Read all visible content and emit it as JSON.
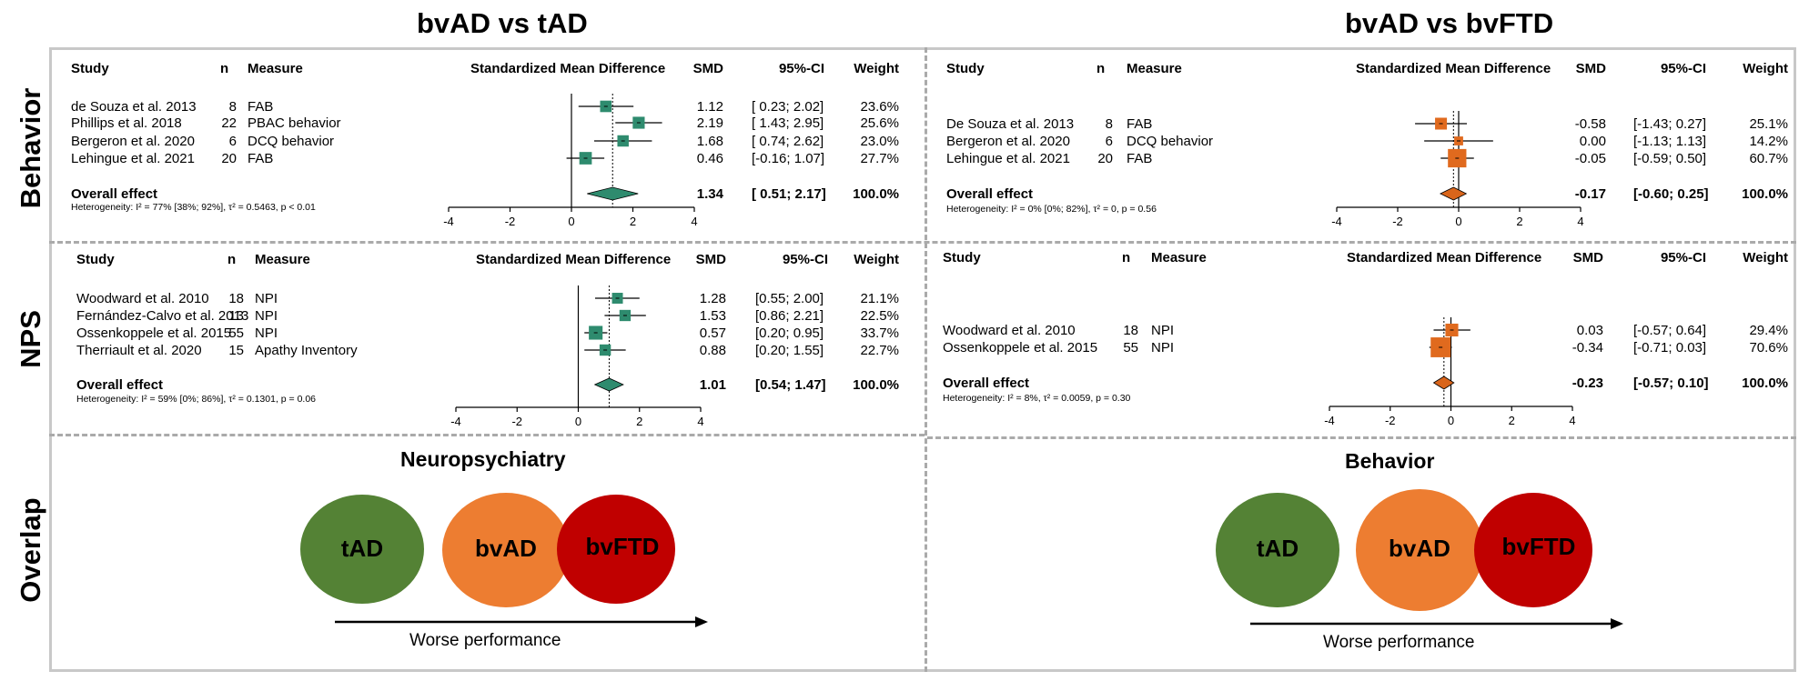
{
  "titles": {
    "left": "bvAD vs tAD",
    "right": "bvAD vs bvFTD"
  },
  "row_labels": {
    "behavior": "Behavior",
    "nps": "NPS",
    "overlap": "Overlap"
  },
  "colors": {
    "green": "#2e8b6e",
    "orange": "#e06a1e",
    "diamond_green": "#2e8b6e",
    "diamond_orange": "#d9651b",
    "circle_tad": "#548235",
    "circle_bvad": "#ed7d31",
    "circle_bvftd": "#c00000"
  },
  "headers": {
    "study": "Study",
    "n": "n",
    "measure": "Measure",
    "smd_plot": "Standardized Mean Difference",
    "smd": "SMD",
    "ci": "95%-CI",
    "weight": "Weight"
  },
  "chart_data": [
    {
      "type": "forest",
      "panel": "Behavior: bvAD vs tAD",
      "xlim": [
        -4,
        4
      ],
      "ticks": [
        "-4",
        "-2",
        "0",
        "2",
        "4"
      ],
      "reference_line": 1.34,
      "studies": [
        {
          "study": "de Souza et al. 2013",
          "n": "8",
          "measure": "FAB",
          "smd": 1.12,
          "lo": 0.23,
          "hi": 2.02,
          "smd_text": "1.12",
          "ci_text": "[ 0.23; 2.02]",
          "weight": "23.6%"
        },
        {
          "study": "Phillips et al. 2018",
          "n": "22",
          "measure": "PBAC behavior",
          "smd": 2.19,
          "lo": 1.43,
          "hi": 2.95,
          "smd_text": "2.19",
          "ci_text": "[ 1.43; 2.95]",
          "weight": "25.6%"
        },
        {
          "study": "Bergeron et al. 2020",
          "n": "6",
          "measure": "DCQ behavior",
          "smd": 1.68,
          "lo": 0.74,
          "hi": 2.62,
          "smd_text": "1.68",
          "ci_text": "[ 0.74; 2.62]",
          "weight": "23.0%"
        },
        {
          "study": "Lehingue et al. 2021",
          "n": "20",
          "measure": "FAB",
          "smd": 0.46,
          "lo": -0.16,
          "hi": 1.07,
          "smd_text": "0.46",
          "ci_text": "[-0.16; 1.07]",
          "weight": "27.7%"
        }
      ],
      "overall": {
        "label": "Overall effect",
        "smd": 1.34,
        "lo": 0.51,
        "hi": 2.17,
        "smd_text": "1.34",
        "ci_text": "[ 0.51; 2.17]",
        "weight": "100.0%"
      },
      "heterogeneity": "Heterogeneity: I² = 77% [38%; 92%], τ² = 0.5463, p < 0.01"
    },
    {
      "type": "forest",
      "panel": "Behavior: bvAD vs bvFTD",
      "xlim": [
        -4,
        4
      ],
      "ticks": [
        "-4",
        "-2",
        "0",
        "2",
        "4"
      ],
      "reference_line": -0.17,
      "studies": [
        {
          "study": "De Souza et al. 2013",
          "n": "8",
          "measure": "FAB",
          "smd": -0.58,
          "lo": -1.43,
          "hi": 0.27,
          "smd_text": "-0.58",
          "ci_text": "[-1.43; 0.27]",
          "weight": "25.1%"
        },
        {
          "study": "Bergeron et al. 2020",
          "n": "6",
          "measure": "DCQ behavior",
          "smd": 0.0,
          "lo": -1.13,
          "hi": 1.13,
          "smd_text": "0.00",
          "ci_text": "[-1.13; 1.13]",
          "weight": "14.2%"
        },
        {
          "study": "Lehingue et al. 2021",
          "n": "20",
          "measure": "FAB",
          "smd": -0.05,
          "lo": -0.59,
          "hi": 0.5,
          "smd_text": "-0.05",
          "ci_text": "[-0.59; 0.50]",
          "weight": "60.7%"
        }
      ],
      "overall": {
        "label": "Overall effect",
        "smd": -0.17,
        "lo": -0.6,
        "hi": 0.25,
        "smd_text": "-0.17",
        "ci_text": "[-0.60; 0.25]",
        "weight": "100.0%"
      },
      "heterogeneity": "Heterogeneity: I² = 0% [0%; 82%], τ² = 0, p = 0.56"
    },
    {
      "type": "forest",
      "panel": "NPS: bvAD vs tAD",
      "xlim": [
        -4,
        4
      ],
      "ticks": [
        "-4",
        "-2",
        "0",
        "2",
        "4"
      ],
      "reference_line": 1.01,
      "studies": [
        {
          "study": "Woodward et al. 2010",
          "n": "18",
          "measure": "NPI",
          "smd": 1.28,
          "lo": 0.55,
          "hi": 2.0,
          "smd_text": "1.28",
          "ci_text": "[0.55; 2.00]",
          "weight": "21.1%"
        },
        {
          "study": "Fernández-Calvo et al. 2013",
          "n": "13",
          "measure": "NPI",
          "smd": 1.53,
          "lo": 0.86,
          "hi": 2.21,
          "smd_text": "1.53",
          "ci_text": "[0.86; 2.21]",
          "weight": "22.5%"
        },
        {
          "study": "Ossenkoppele et al. 2015",
          "n": "55",
          "measure": "NPI",
          "smd": 0.57,
          "lo": 0.2,
          "hi": 0.95,
          "smd_text": "0.57",
          "ci_text": "[0.20; 0.95]",
          "weight": "33.7%"
        },
        {
          "study": "Therriault et al. 2020",
          "n": "15",
          "measure": "Apathy Inventory",
          "smd": 0.88,
          "lo": 0.2,
          "hi": 1.55,
          "smd_text": "0.88",
          "ci_text": "[0.20; 1.55]",
          "weight": "22.7%"
        }
      ],
      "overall": {
        "label": "Overall effect",
        "smd": 1.01,
        "lo": 0.54,
        "hi": 1.47,
        "smd_text": "1.01",
        "ci_text": "[0.54; 1.47]",
        "weight": "100.0%"
      },
      "heterogeneity": "Heterogeneity: I² = 59% [0%; 86%], τ² = 0.1301, p = 0.06"
    },
    {
      "type": "forest",
      "panel": "NPS: bvAD vs bvFTD",
      "xlim": [
        -4,
        4
      ],
      "ticks": [
        "-4",
        "-2",
        "0",
        "2",
        "4"
      ],
      "reference_line": -0.23,
      "studies": [
        {
          "study": "Woodward et al. 2010",
          "n": "18",
          "measure": "NPI",
          "smd": 0.03,
          "lo": -0.57,
          "hi": 0.64,
          "smd_text": "0.03",
          "ci_text": "[-0.57; 0.64]",
          "weight": "29.4%"
        },
        {
          "study": "Ossenkoppele et al. 2015",
          "n": "55",
          "measure": "NPI",
          "smd": -0.34,
          "lo": -0.71,
          "hi": 0.03,
          "smd_text": "-0.34",
          "ci_text": "[-0.71; 0.03]",
          "weight": "70.6%"
        }
      ],
      "overall": {
        "label": "Overall effect",
        "smd": -0.23,
        "lo": -0.57,
        "hi": 0.1,
        "smd_text": "-0.23",
        "ci_text": "[-0.57; 0.10]",
        "weight": "100.0%"
      },
      "heterogeneity": "Heterogeneity: I² = 8%, τ² = 0.0059, p = 0.30"
    }
  ],
  "overlap": {
    "left": {
      "title": "Neuropsychiatry",
      "circles": [
        "tAD",
        "bvAD",
        "bvFTD"
      ],
      "arrow_label": "Worse performance"
    },
    "right": {
      "title": "Behavior",
      "circles": [
        "tAD",
        "bvAD",
        "bvFTD"
      ],
      "arrow_label": "Worse performance"
    }
  }
}
